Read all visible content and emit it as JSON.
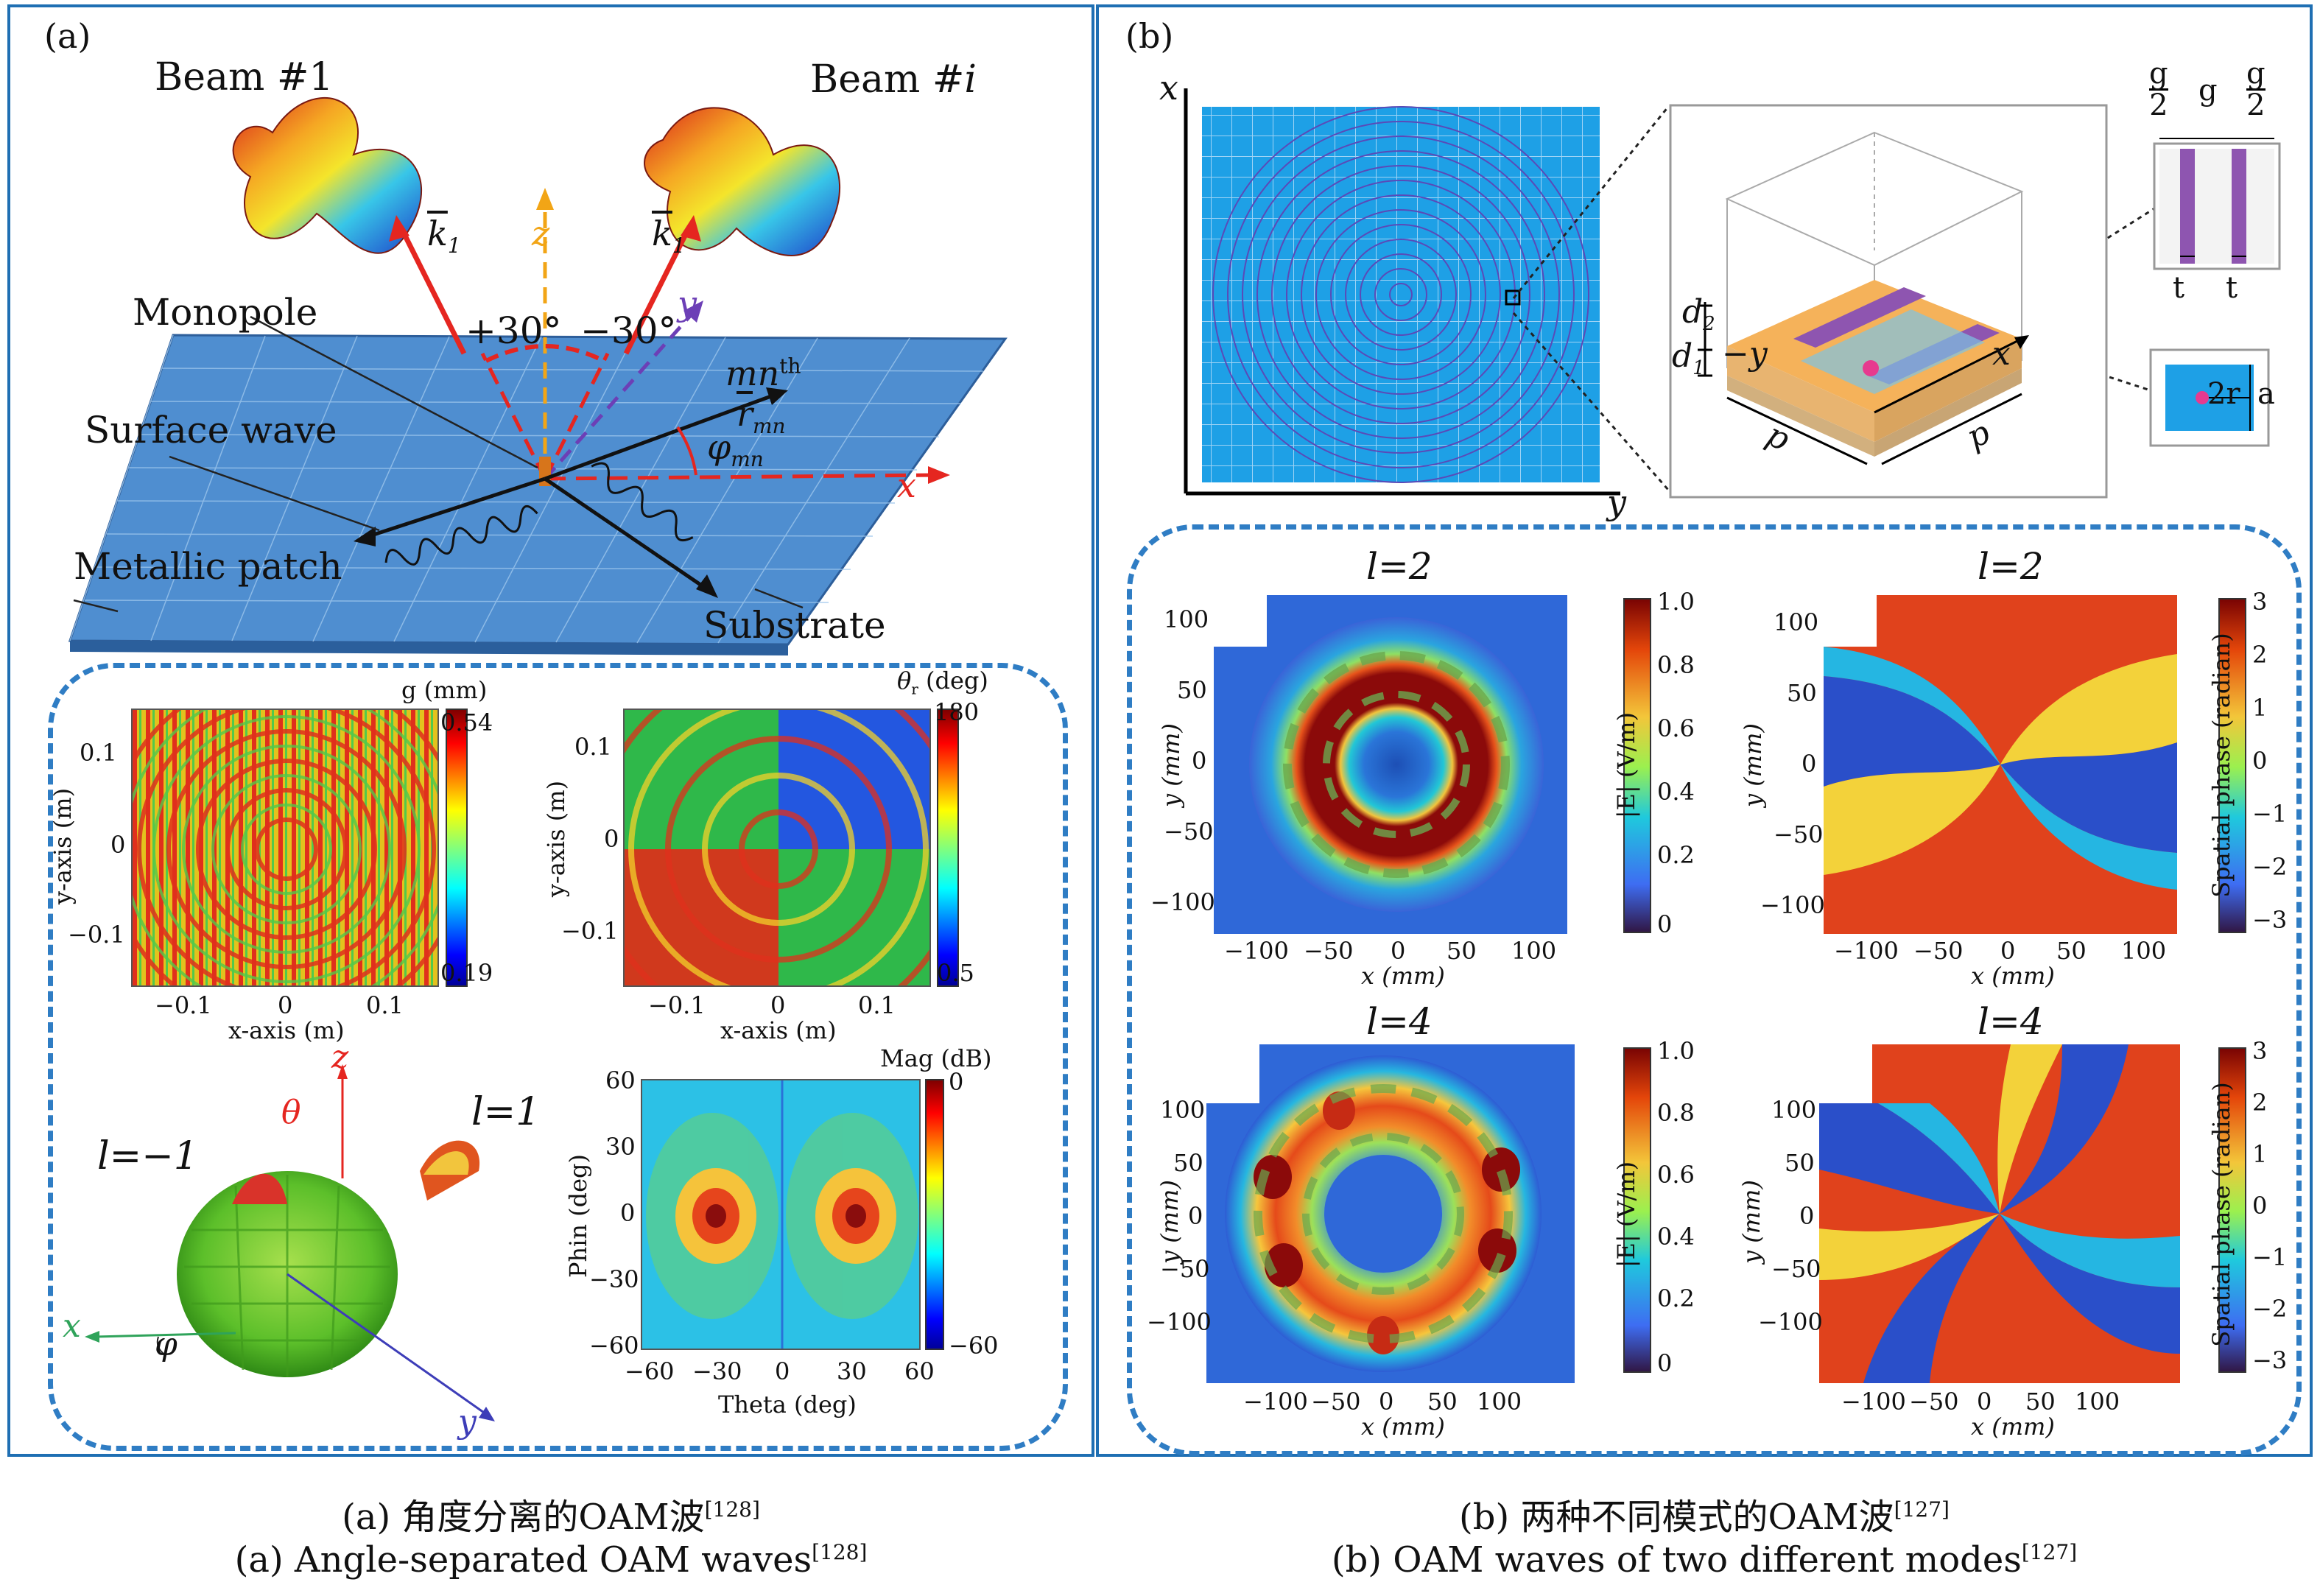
{
  "panel_a": {
    "tag": "(a)",
    "beam1": "Beam #1",
    "beami_prefix": "Beam #",
    "beami_var": "i",
    "k1_left": "k",
    "k1_right": "k",
    "k_sub": "1",
    "z_axis": "z",
    "y_axis": "y",
    "x_axis": "x",
    "monopole": "Monopole",
    "angle_pos": "+30°",
    "angle_neg": "−30°",
    "mn_th": "mn",
    "mn_sup": "th",
    "r_mn": "r",
    "r_sub": "mn",
    "phi_mn": "φ",
    "phi_sub": "mn",
    "surface_wave": "Surface wave",
    "metallic_patch": "Metallic patch",
    "substrate": "Substrate",
    "plot_g": {
      "cbar_title": "g (mm)",
      "cbar_max": "0.54",
      "cbar_min": "0.19",
      "ylabel": "y-axis (m)",
      "xlabel": "x-axis (m)",
      "yticks": [
        "0.1",
        "0",
        "−0.1"
      ],
      "xticks": [
        "−0.1",
        "0",
        "0.1"
      ]
    },
    "plot_theta": {
      "cbar_title": "θ",
      "cbar_title_sub": "r",
      "cbar_title_unit": "(deg)",
      "cbar_max": "180",
      "cbar_min": "0.5",
      "ylabel": "y-axis (m)",
      "xlabel": "x-axis (m)",
      "yticks": [
        "0.1",
        "0",
        "−0.1"
      ],
      "xticks": [
        "−0.1",
        "0",
        "0.1"
      ]
    },
    "pattern3d": {
      "z": "z",
      "theta": "θ",
      "l_neg": "l=−1",
      "l_pos": "l=1",
      "x": "x",
      "phi": "φ",
      "y": "y"
    },
    "plot_mag": {
      "cbar_title": "Mag (dB)",
      "cbar_max": "0",
      "cbar_min": "−60",
      "ylabel": "Phin (deg)",
      "xlabel": "Theta (deg)",
      "yticks": [
        "60",
        "30",
        "0",
        "−30",
        "−60"
      ],
      "xticks": [
        "−60",
        "−30",
        "0",
        "30",
        "60"
      ]
    }
  },
  "panel_b": {
    "tag": "(b)",
    "x": "x",
    "y": "y",
    "unit_cell": {
      "d2": "d",
      "d2_sub": "2",
      "d1": "d",
      "d1_sub": "1",
      "neg_y": "−y",
      "x": "x",
      "p_left": "p",
      "p_right": "p"
    },
    "slot_detail": {
      "g_half_num": "g",
      "g_half_den": "2",
      "g_mid": "g",
      "t_left": "t",
      "t_right": "t",
      "two_r": "2r",
      "a": "a"
    },
    "maps": [
      {
        "title": "l=2",
        "ylabel": "y (mm)",
        "xlabel": "x (mm)",
        "cbar_label": "|E| (V/m)",
        "yticks": [
          "100",
          "50",
          "0",
          "−50",
          "−100"
        ],
        "xticks": [
          "−100",
          "−50",
          "0",
          "50",
          "100"
        ],
        "cticks": [
          "1.0",
          "0.8",
          "0.6",
          "0.4",
          "0.2",
          "0"
        ]
      },
      {
        "title": "l=2",
        "ylabel": "y (mm)",
        "xlabel": "x (mm)",
        "cbar_label": "Spatial phase (radian)",
        "yticks": [
          "100",
          "50",
          "0",
          "−50",
          "−100"
        ],
        "xticks": [
          "−100",
          "−50",
          "0",
          "50",
          "100"
        ],
        "cticks": [
          "3",
          "2",
          "1",
          "0",
          "−1",
          "−2",
          "−3"
        ]
      },
      {
        "title": "l=4",
        "ylabel": "y (mm)",
        "xlabel": "x (mm)",
        "cbar_label": "|E| (V/m)",
        "yticks": [
          "100",
          "50",
          "0",
          "−50",
          "−100"
        ],
        "xticks": [
          "−100",
          "−50",
          "0",
          "50",
          "100"
        ],
        "cticks": [
          "1.0",
          "0.8",
          "0.6",
          "0.4",
          "0.2",
          "0"
        ]
      },
      {
        "title": "l=4",
        "ylabel": "y (mm)",
        "xlabel": "x (mm)",
        "cbar_label": "Spatial phase (radian)",
        "yticks": [
          "100",
          "50",
          "0",
          "−50",
          "−100"
        ],
        "xticks": [
          "−100",
          "−50",
          "0",
          "50",
          "100"
        ],
        "cticks": [
          "3",
          "2",
          "1",
          "0",
          "−1",
          "−2",
          "−3"
        ]
      }
    ]
  },
  "captions": {
    "a_cn": "(a) 角度分离的OAM波",
    "a_cn_ref": "[128]",
    "a_en": "(a) Angle-separated OAM waves",
    "a_en_ref": "[128]",
    "b_cn": "(b) 两种不同模式的OAM波",
    "b_cn_ref": "[127]",
    "b_en": "(b) OAM waves of two different modes",
    "b_en_ref": "[127]"
  },
  "colors": {
    "frame_blue": "#1f6fb3",
    "patch_blue": "#4f8ed0",
    "sky_blue": "#1ea0e6",
    "arrow_red": "#e52620"
  }
}
